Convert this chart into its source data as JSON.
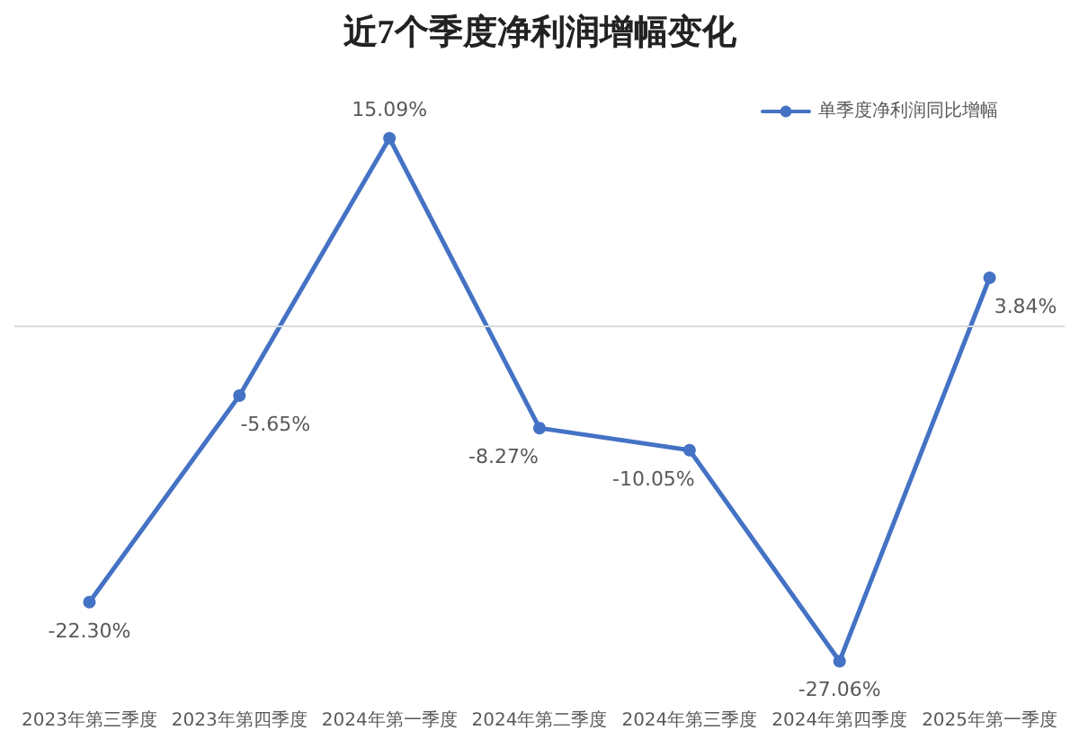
{
  "chart_data": {
    "type": "line",
    "title": "近7个季度净利润增幅变化",
    "categories": [
      "2023年第三季度",
      "2023年第四季度",
      "2024年第一季度",
      "2024年第二季度",
      "2024年第三季度",
      "2024年第四季度",
      "2025年第一季度"
    ],
    "series": [
      {
        "name": "单季度净利润同比增幅",
        "color": "#4472c4",
        "values": [
          -22.3,
          -5.65,
          15.09,
          -8.27,
          -10.05,
          -27.06,
          3.84
        ],
        "value_labels": [
          "-22.30%",
          "-5.65%",
          "15.09%",
          "-8.27%",
          "-10.05%",
          "-27.06%",
          "3.84%"
        ]
      }
    ],
    "tick_labels": "x",
    "legend": "top right",
    "marker": "circle",
    "line_style": "solid",
    "ref_lines": [
      {
        "axis": "y",
        "value": 0,
        "color": "#d9d9d9"
      }
    ]
  }
}
